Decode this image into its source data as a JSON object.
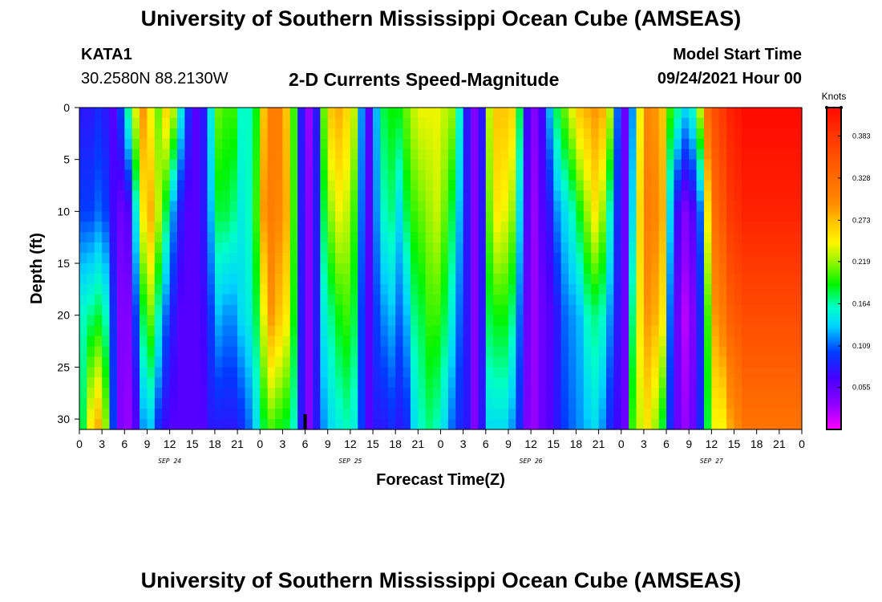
{
  "header": {
    "title": "University of Southern Mississippi Ocean Cube (AMSEAS)",
    "station": "KATA1",
    "coords": "30.2580N  88.2130W",
    "plot_title": "2-D Currents Speed-Magnitude",
    "model_label": "Model Start Time",
    "model_time": "09/24/2021 Hour 00"
  },
  "footer": {
    "title": "University of Southern Mississippi Ocean Cube (AMSEAS)"
  },
  "chart_data": {
    "type": "heatmap",
    "title": "2-D Currents Speed-Magnitude",
    "xlabel": "Forecast Time(Z)",
    "ylabel": "Depth (ft)",
    "x_range_hours": [
      0,
      96
    ],
    "y_range_ft": [
      0,
      31
    ],
    "y_ticks": [
      0,
      5,
      10,
      15,
      20,
      25,
      30
    ],
    "x_ticks": [
      {
        "h": 0,
        "label": "0"
      },
      {
        "h": 3,
        "label": "3"
      },
      {
        "h": 6,
        "label": "6"
      },
      {
        "h": 9,
        "label": "9"
      },
      {
        "h": 12,
        "label": "12"
      },
      {
        "h": 15,
        "label": "15"
      },
      {
        "h": 18,
        "label": "18"
      },
      {
        "h": 21,
        "label": "21"
      },
      {
        "h": 24,
        "label": "0"
      },
      {
        "h": 27,
        "label": "3"
      },
      {
        "h": 30,
        "label": "6"
      },
      {
        "h": 33,
        "label": "9"
      },
      {
        "h": 36,
        "label": "12"
      },
      {
        "h": 39,
        "label": "15"
      },
      {
        "h": 42,
        "label": "18"
      },
      {
        "h": 45,
        "label": "21"
      },
      {
        "h": 48,
        "label": "0"
      },
      {
        "h": 51,
        "label": "3"
      },
      {
        "h": 54,
        "label": "6"
      },
      {
        "h": 57,
        "label": "9"
      },
      {
        "h": 60,
        "label": "12"
      },
      {
        "h": 63,
        "label": "15"
      },
      {
        "h": 66,
        "label": "18"
      },
      {
        "h": 69,
        "label": "21"
      },
      {
        "h": 72,
        "label": "0"
      },
      {
        "h": 75,
        "label": "3"
      },
      {
        "h": 78,
        "label": "6"
      },
      {
        "h": 81,
        "label": "9"
      },
      {
        "h": 84,
        "label": "12"
      },
      {
        "h": 87,
        "label": "15"
      },
      {
        "h": 90,
        "label": "18"
      },
      {
        "h": 93,
        "label": "21"
      },
      {
        "h": 96,
        "label": "0"
      }
    ],
    "day_labels": [
      {
        "h": 12,
        "label": "SEP 24"
      },
      {
        "h": 36,
        "label": "SEP 25"
      },
      {
        "h": 60,
        "label": "SEP 26"
      },
      {
        "h": 84,
        "label": "SEP 27"
      }
    ],
    "current_time_marker_hour": 30,
    "colorbar": {
      "unit": "Knots",
      "min": 0.0,
      "max": 0.42,
      "ticks": [
        0.383,
        0.328,
        0.273,
        0.219,
        0.164,
        0.109,
        0.055
      ],
      "tick_labels": [
        "0.383",
        "0.328",
        "0.273",
        "0.219",
        "0.164",
        "0.109",
        "0.055"
      ]
    },
    "speed_columns_knots": {
      "depths_ft": [
        0,
        10,
        20,
        31
      ],
      "columns": [
        {
          "h": 0,
          "v": [
            0.08,
            0.1,
            0.16,
            0.18
          ]
        },
        {
          "h": 1,
          "v": [
            0.08,
            0.1,
            0.17,
            0.25
          ]
        },
        {
          "h": 2,
          "v": [
            0.09,
            0.11,
            0.18,
            0.28
          ]
        },
        {
          "h": 3,
          "v": [
            0.08,
            0.1,
            0.16,
            0.22
          ]
        },
        {
          "h": 4,
          "v": [
            0.06,
            0.07,
            0.09,
            0.1
          ]
        },
        {
          "h": 5,
          "v": [
            0.1,
            0.05,
            0.04,
            0.04
          ]
        },
        {
          "h": 6,
          "v": [
            0.17,
            0.06,
            0.04,
            0.03
          ]
        },
        {
          "h": 7,
          "v": [
            0.24,
            0.15,
            0.1,
            0.06
          ]
        },
        {
          "h": 8,
          "v": [
            0.29,
            0.25,
            0.18,
            0.12
          ]
        },
        {
          "h": 9,
          "v": [
            0.24,
            0.28,
            0.21,
            0.13
          ]
        },
        {
          "h": 10,
          "v": [
            0.21,
            0.23,
            0.16,
            0.09
          ]
        },
        {
          "h": 11,
          "v": [
            0.26,
            0.18,
            0.11,
            0.07
          ]
        },
        {
          "h": 12,
          "v": [
            0.23,
            0.12,
            0.08,
            0.06
          ]
        },
        {
          "h": 13,
          "v": [
            0.15,
            0.08,
            0.06,
            0.06
          ]
        },
        {
          "h": 14,
          "v": [
            0.09,
            0.06,
            0.06,
            0.06
          ]
        },
        {
          "h": 15,
          "v": [
            0.06,
            0.06,
            0.06,
            0.06
          ]
        },
        {
          "h": 16,
          "v": [
            0.08,
            0.08,
            0.07,
            0.06
          ]
        },
        {
          "h": 17,
          "v": [
            0.15,
            0.13,
            0.1,
            0.08
          ]
        },
        {
          "h": 18,
          "v": [
            0.21,
            0.18,
            0.13,
            0.08
          ]
        },
        {
          "h": 19,
          "v": [
            0.2,
            0.18,
            0.12,
            0.08
          ]
        },
        {
          "h": 20,
          "v": [
            0.2,
            0.17,
            0.12,
            0.08
          ]
        },
        {
          "h": 21,
          "v": [
            0.16,
            0.15,
            0.14,
            0.09
          ]
        },
        {
          "h": 22,
          "v": [
            0.16,
            0.16,
            0.15,
            0.11
          ]
        },
        {
          "h": 23,
          "v": [
            0.19,
            0.2,
            0.18,
            0.14
          ]
        },
        {
          "h": 24,
          "v": [
            0.27,
            0.29,
            0.24,
            0.18
          ]
        },
        {
          "h": 25,
          "v": [
            0.31,
            0.31,
            0.29,
            0.2
          ]
        },
        {
          "h": 26,
          "v": [
            0.31,
            0.3,
            0.27,
            0.19
          ]
        },
        {
          "h": 27,
          "v": [
            0.27,
            0.28,
            0.25,
            0.18
          ]
        },
        {
          "h": 28,
          "v": [
            0.2,
            0.2,
            0.19,
            0.16
          ]
        },
        {
          "h": 29,
          "v": [
            0.08,
            0.08,
            0.08,
            0.08
          ]
        },
        {
          "h": 30,
          "v": [
            0.03,
            0.04,
            0.04,
            0.04
          ]
        },
        {
          "h": 31,
          "v": [
            0.08,
            0.08,
            0.08,
            0.08
          ]
        },
        {
          "h": 32,
          "v": [
            0.21,
            0.18,
            0.15,
            0.12
          ]
        },
        {
          "h": 33,
          "v": [
            0.27,
            0.22,
            0.17,
            0.14
          ]
        },
        {
          "h": 34,
          "v": [
            0.28,
            0.24,
            0.19,
            0.15
          ]
        },
        {
          "h": 35,
          "v": [
            0.26,
            0.23,
            0.2,
            0.16
          ]
        },
        {
          "h": 36,
          "v": [
            0.23,
            0.2,
            0.18,
            0.15
          ]
        },
        {
          "h": 37,
          "v": [
            0.12,
            0.11,
            0.1,
            0.1
          ]
        },
        {
          "h": 38,
          "v": [
            0.06,
            0.06,
            0.06,
            0.06
          ]
        },
        {
          "h": 39,
          "v": [
            0.13,
            0.12,
            0.1,
            0.08
          ]
        },
        {
          "h": 40,
          "v": [
            0.18,
            0.16,
            0.12,
            0.08
          ]
        },
        {
          "h": 41,
          "v": [
            0.19,
            0.17,
            0.13,
            0.09
          ]
        },
        {
          "h": 42,
          "v": [
            0.19,
            0.14,
            0.11,
            0.08
          ]
        },
        {
          "h": 43,
          "v": [
            0.21,
            0.18,
            0.13,
            0.09
          ]
        },
        {
          "h": 44,
          "v": [
            0.23,
            0.2,
            0.17,
            0.14
          ]
        },
        {
          "h": 45,
          "v": [
            0.24,
            0.21,
            0.18,
            0.16
          ]
        },
        {
          "h": 46,
          "v": [
            0.24,
            0.22,
            0.2,
            0.17
          ]
        },
        {
          "h": 47,
          "v": [
            0.24,
            0.23,
            0.2,
            0.16
          ]
        },
        {
          "h": 48,
          "v": [
            0.23,
            0.21,
            0.18,
            0.14
          ]
        },
        {
          "h": 49,
          "v": [
            0.22,
            0.18,
            0.15,
            0.11
          ]
        },
        {
          "h": 50,
          "v": [
            0.16,
            0.13,
            0.11,
            0.09
          ]
        },
        {
          "h": 51,
          "v": [
            0.08,
            0.08,
            0.08,
            0.08
          ]
        },
        {
          "h": 52,
          "v": [
            0.04,
            0.04,
            0.04,
            0.04
          ]
        },
        {
          "h": 53,
          "v": [
            0.08,
            0.08,
            0.08,
            0.08
          ]
        },
        {
          "h": 54,
          "v": [
            0.23,
            0.21,
            0.18,
            0.14
          ]
        },
        {
          "h": 55,
          "v": [
            0.27,
            0.25,
            0.19,
            0.14
          ]
        },
        {
          "h": 56,
          "v": [
            0.27,
            0.24,
            0.19,
            0.14
          ]
        },
        {
          "h": 57,
          "v": [
            0.26,
            0.22,
            0.17,
            0.12
          ]
        },
        {
          "h": 58,
          "v": [
            0.18,
            0.14,
            0.11,
            0.09
          ]
        },
        {
          "h": 59,
          "v": [
            0.07,
            0.06,
            0.05,
            0.04
          ]
        },
        {
          "h": 60,
          "v": [
            0.04,
            0.03,
            0.03,
            0.03
          ]
        },
        {
          "h": 61,
          "v": [
            0.07,
            0.06,
            0.05,
            0.05
          ]
        },
        {
          "h": 62,
          "v": [
            0.13,
            0.08,
            0.06,
            0.06
          ]
        },
        {
          "h": 63,
          "v": [
            0.18,
            0.12,
            0.08,
            0.08
          ]
        },
        {
          "h": 64,
          "v": [
            0.21,
            0.14,
            0.11,
            0.1
          ]
        },
        {
          "h": 65,
          "v": [
            0.24,
            0.16,
            0.12,
            0.11
          ]
        },
        {
          "h": 66,
          "v": [
            0.27,
            0.19,
            0.13,
            0.12
          ]
        },
        {
          "h": 67,
          "v": [
            0.28,
            0.22,
            0.16,
            0.13
          ]
        },
        {
          "h": 68,
          "v": [
            0.29,
            0.25,
            0.17,
            0.14
          ]
        },
        {
          "h": 69,
          "v": [
            0.28,
            0.22,
            0.16,
            0.12
          ]
        },
        {
          "h": 70,
          "v": [
            0.23,
            0.16,
            0.12,
            0.09
          ]
        },
        {
          "h": 71,
          "v": [
            0.11,
            0.09,
            0.08,
            0.07
          ]
        },
        {
          "h": 72,
          "v": [
            0.05,
            0.05,
            0.05,
            0.05
          ]
        },
        {
          "h": 73,
          "v": [
            0.12,
            0.14,
            0.17,
            0.2
          ]
        },
        {
          "h": 74,
          "v": [
            0.24,
            0.26,
            0.25,
            0.23
          ]
        },
        {
          "h": 75,
          "v": [
            0.3,
            0.31,
            0.29,
            0.25
          ]
        },
        {
          "h": 76,
          "v": [
            0.29,
            0.3,
            0.28,
            0.22
          ]
        },
        {
          "h": 77,
          "v": [
            0.27,
            0.28,
            0.25,
            0.18
          ]
        },
        {
          "h": 78,
          "v": [
            0.2,
            0.14,
            0.11,
            0.09
          ]
        },
        {
          "h": 79,
          "v": [
            0.17,
            0.07,
            0.05,
            0.05
          ]
        },
        {
          "h": 80,
          "v": [
            0.14,
            0.04,
            0.02,
            0.03
          ]
        },
        {
          "h": 81,
          "v": [
            0.16,
            0.06,
            0.04,
            0.05
          ]
        },
        {
          "h": 82,
          "v": [
            0.23,
            0.11,
            0.09,
            0.09
          ]
        },
        {
          "h": 83,
          "v": [
            0.33,
            0.25,
            0.2,
            0.18
          ]
        },
        {
          "h": 84,
          "v": [
            0.36,
            0.33,
            0.29,
            0.24
          ]
        },
        {
          "h": 85,
          "v": [
            0.38,
            0.35,
            0.31,
            0.24
          ]
        },
        {
          "h": 86,
          "v": [
            0.4,
            0.38,
            0.34,
            0.28
          ]
        },
        {
          "h": 87,
          "v": [
            0.41,
            0.39,
            0.35,
            0.3
          ]
        },
        {
          "h": 88,
          "v": [
            0.42,
            0.4,
            0.36,
            0.32
          ]
        }
      ]
    }
  }
}
